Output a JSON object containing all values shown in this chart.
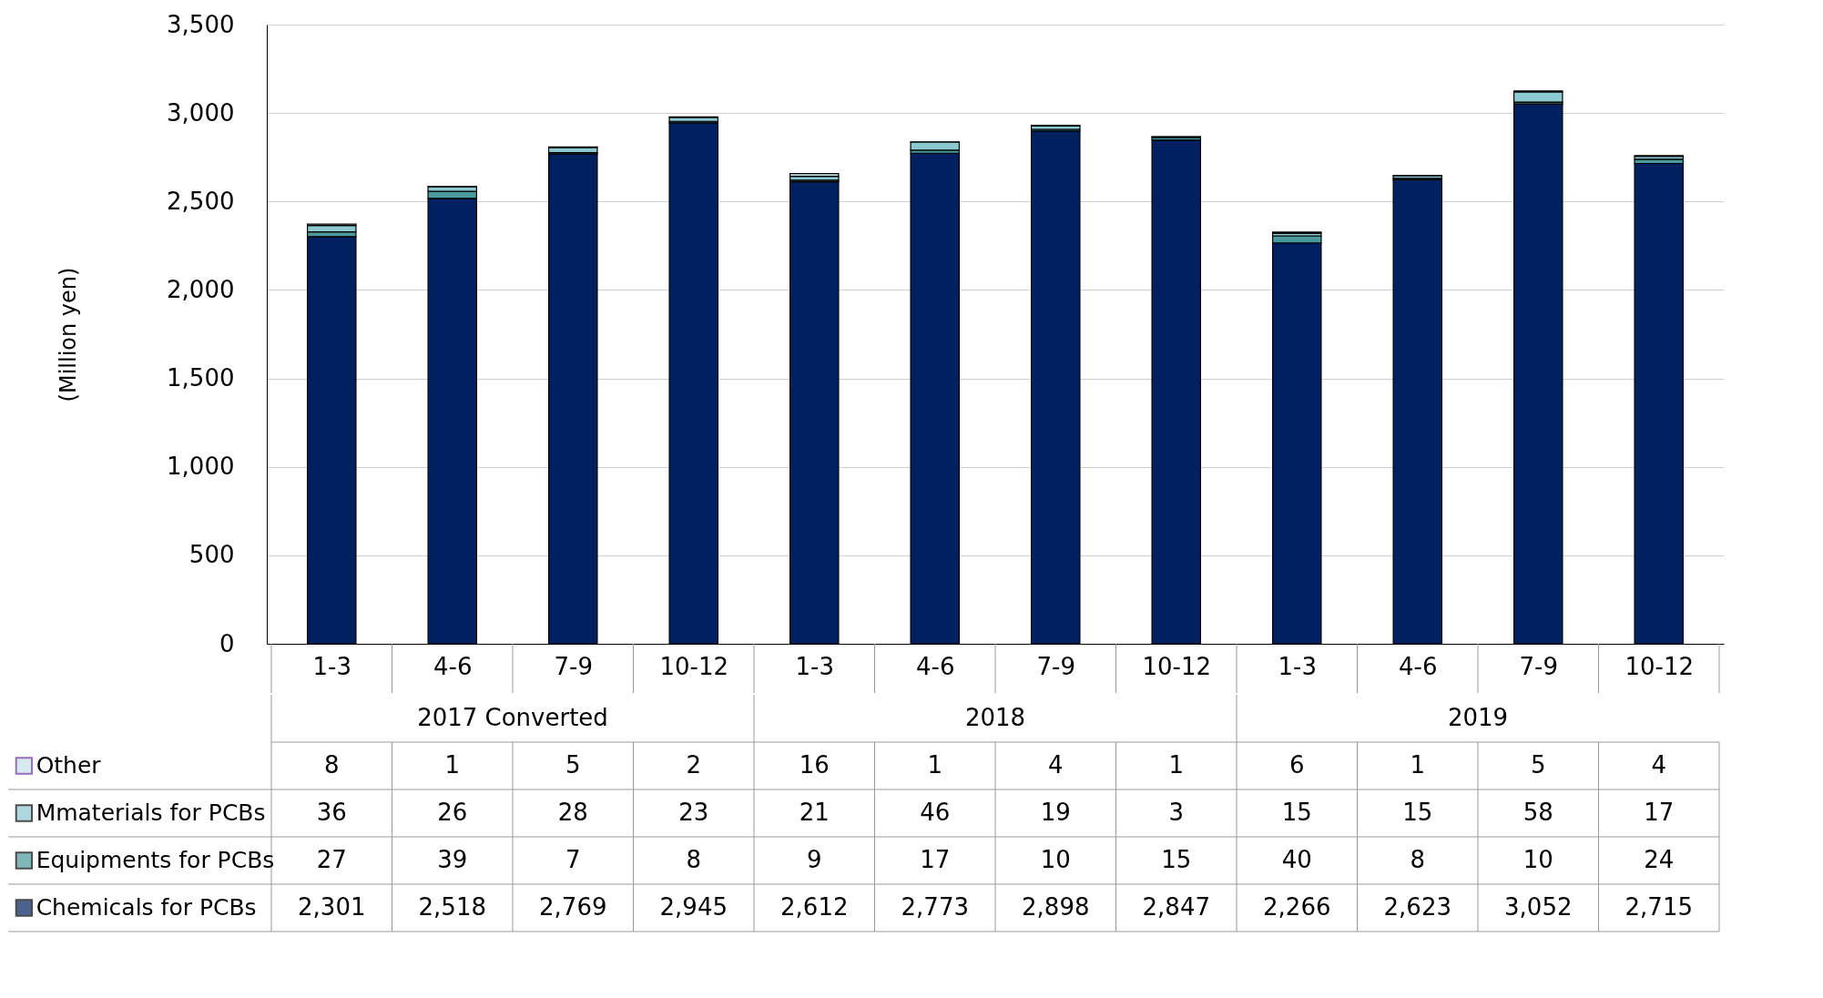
{
  "chart_data": {
    "type": "bar",
    "stacked": true,
    "ylabel": "(Million yen)",
    "categories": [
      "1-3",
      "4-6",
      "7-9",
      "10-12",
      "1-3",
      "4-6",
      "7-9",
      "10-12",
      "1-3",
      "4-6",
      "7-9",
      "10-12"
    ],
    "annotations": [
      "2017 Converted",
      "2018",
      "2019"
    ],
    "series": [
      {
        "name": "Chemicals for PCBs",
        "color": "#002060",
        "values": [
          2301,
          2518,
          2769,
          2945,
          2612,
          2773,
          2898,
          2847,
          2266,
          2623,
          3052,
          2715
        ],
        "value_labels": [
          "2,301",
          "2,518",
          "2,769",
          "2,945",
          "2,612",
          "2,773",
          "2,898",
          "2,847",
          "2,266",
          "2,623",
          "3,052",
          "2,715"
        ]
      },
      {
        "name": "Equipments for PCBs",
        "color": "#4a9a9c",
        "values": [
          27,
          39,
          7,
          8,
          9,
          17,
          10,
          15,
          40,
          8,
          10,
          24
        ],
        "value_labels": [
          "27",
          "39",
          "7",
          "8",
          "9",
          "17",
          "10",
          "15",
          "40",
          "8",
          "10",
          "24"
        ]
      },
      {
        "name": "Mmaterials for PCBs",
        "color": "#8cc8d0",
        "values": [
          36,
          26,
          28,
          23,
          21,
          46,
          19,
          3,
          15,
          15,
          58,
          17
        ],
        "value_labels": [
          "36",
          "26",
          "28",
          "23",
          "21",
          "46",
          "19",
          "3",
          "15",
          "15",
          "58",
          "17"
        ]
      },
      {
        "name": "Other",
        "color": "#c5e0e6",
        "values": [
          8,
          1,
          5,
          2,
          16,
          1,
          4,
          1,
          6,
          1,
          5,
          4
        ],
        "value_labels": [
          "8",
          "1",
          "5",
          "2",
          "16",
          "1",
          "4",
          "1",
          "6",
          "1",
          "5",
          "4"
        ]
      }
    ],
    "ylim": [
      0,
      3500
    ],
    "yticks": [
      0,
      500,
      {
        "value": 1000,
        "label": "1,000"
      },
      {
        "value": 1500,
        "label": "1,500"
      },
      {
        "value": 2000,
        "label": "2,000"
      },
      {
        "value": 2500,
        "label": "2,500"
      },
      {
        "value": 3000,
        "label": "3,000"
      },
      {
        "value": 3500,
        "label": "3,500"
      }
    ],
    "grid": "y",
    "legend": "bottom left"
  }
}
